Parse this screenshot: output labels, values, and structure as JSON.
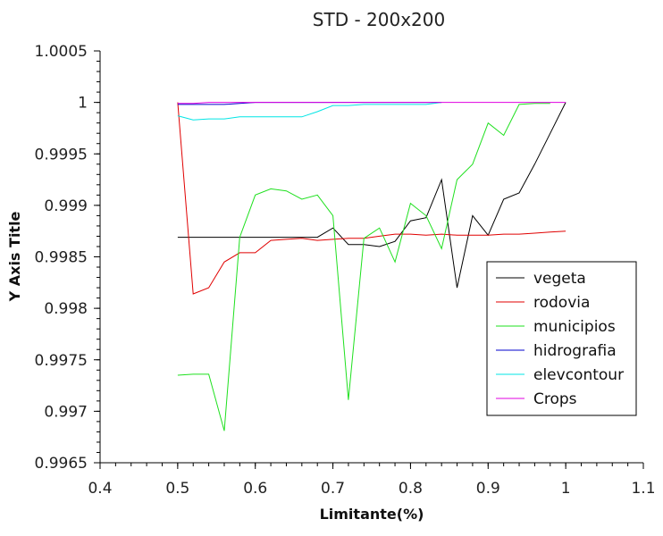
{
  "chart_data": {
    "type": "line",
    "title": "STD - 200x200",
    "xlabel": "Limitante(%)",
    "ylabel": "Y Axis Title",
    "xlim": [
      0.4,
      1.1
    ],
    "ylim": [
      0.9965,
      1.0005
    ],
    "x_ticks": [
      "0.4",
      "0.5",
      "0.6",
      "0.7",
      "0.8",
      "0.9",
      "1",
      "1.1"
    ],
    "y_ticks": [
      "0.9965",
      "0.997",
      "0.9975",
      "0.998",
      "0.9985",
      "0.999",
      "0.9995",
      "1",
      "1.0005"
    ],
    "grid": false,
    "legend_position": "right",
    "series": [
      {
        "name": "vegeta",
        "color": "#000000",
        "x": [
          0.5,
          0.52,
          0.54,
          0.56,
          0.58,
          0.6,
          0.62,
          0.64,
          0.66,
          0.68,
          0.7,
          0.72,
          0.74,
          0.76,
          0.78,
          0.8,
          0.82,
          0.84,
          0.86,
          0.88,
          0.9,
          0.92,
          0.94,
          0.96,
          0.98,
          1.0
        ],
        "y": [
          0.99869,
          0.99869,
          0.99869,
          0.99869,
          0.99869,
          0.99869,
          0.99869,
          0.99869,
          0.99869,
          0.99869,
          0.99878,
          0.99862,
          0.99862,
          0.9986,
          0.99865,
          0.99885,
          0.99888,
          0.99925,
          0.9982,
          0.9989,
          0.99871,
          0.99906,
          0.99912,
          0.9994,
          0.9997,
          1.0
        ]
      },
      {
        "name": "rodovia",
        "color": "#e00000",
        "x": [
          0.5,
          0.52,
          0.54,
          0.56,
          0.58,
          0.6,
          0.62,
          0.64,
          0.66,
          0.68,
          0.7,
          0.72,
          0.74,
          0.76,
          0.78,
          0.8,
          0.82,
          0.84,
          0.86,
          0.88,
          0.9,
          0.92,
          0.94,
          0.96,
          0.98,
          1.0
        ],
        "y": [
          1.0,
          0.99814,
          0.9982,
          0.99845,
          0.99854,
          0.99854,
          0.99866,
          0.99867,
          0.99868,
          0.99866,
          0.99867,
          0.99868,
          0.99868,
          0.9987,
          0.99872,
          0.99872,
          0.99871,
          0.99872,
          0.99871,
          0.99871,
          0.99871,
          0.99872,
          0.99872,
          0.99873,
          0.99874,
          0.99875
        ]
      },
      {
        "name": "municipios",
        "color": "#1ee01e",
        "x": [
          0.5,
          0.52,
          0.54,
          0.56,
          0.58,
          0.6,
          0.62,
          0.64,
          0.66,
          0.68,
          0.7,
          0.72,
          0.74,
          0.76,
          0.78,
          0.8,
          0.82,
          0.84,
          0.86,
          0.88,
          0.9,
          0.92,
          0.94,
          0.96,
          0.98
        ],
        "y": [
          0.99735,
          0.99736,
          0.99736,
          0.99681,
          0.99869,
          0.9991,
          0.99916,
          0.99914,
          0.99906,
          0.9991,
          0.9989,
          0.99711,
          0.99868,
          0.99878,
          0.99845,
          0.99902,
          0.9989,
          0.99858,
          0.99925,
          0.9994,
          0.9998,
          0.99968,
          0.99998,
          0.99999,
          0.99999
        ]
      },
      {
        "name": "hidrografia",
        "color": "#0000cc",
        "x": [
          0.5,
          0.52,
          0.54,
          0.56,
          0.58,
          0.6,
          0.62,
          0.64,
          0.66,
          0.68,
          0.7,
          0.72,
          0.74,
          0.76,
          0.78,
          0.8,
          0.82,
          0.84
        ],
        "y": [
          0.99998,
          0.99998,
          0.99998,
          0.99998,
          0.99999,
          1.0,
          1.0,
          1.0,
          1.0,
          1.0,
          1.0,
          1.0,
          1.0,
          1.0,
          1.0,
          1.0,
          1.0,
          1.0
        ]
      },
      {
        "name": "elevcontour",
        "color": "#00e5e5",
        "x": [
          0.5,
          0.52,
          0.54,
          0.56,
          0.58,
          0.6,
          0.62,
          0.64,
          0.66,
          0.68,
          0.7,
          0.72,
          0.74,
          0.76,
          0.78,
          0.8,
          0.82,
          0.84
        ],
        "y": [
          0.99987,
          0.99983,
          0.99984,
          0.99984,
          0.99986,
          0.99986,
          0.99986,
          0.99986,
          0.99986,
          0.99991,
          0.99997,
          0.99997,
          0.99998,
          0.99998,
          0.99998,
          0.99998,
          0.99998,
          1.0
        ]
      },
      {
        "name": "Crops",
        "color": "#e000e0",
        "x": [
          0.5,
          0.52,
          0.54,
          0.56,
          0.58,
          0.6,
          0.62,
          0.64,
          0.66,
          0.68,
          0.7,
          0.72,
          0.74,
          0.76,
          0.78,
          0.8,
          0.82,
          0.84,
          0.86,
          0.88,
          0.9,
          0.92,
          0.94,
          0.96,
          0.98,
          1.0
        ],
        "y": [
          0.99999,
          0.99999,
          1.0,
          1.0,
          1.0,
          1.0,
          1.0,
          1.0,
          1.0,
          1.0,
          1.0,
          1.0,
          1.0,
          1.0,
          1.0,
          1.0,
          1.0,
          1.0,
          1.0,
          1.0,
          1.0,
          1.0,
          1.0,
          1.0,
          1.0,
          1.0
        ]
      }
    ]
  }
}
